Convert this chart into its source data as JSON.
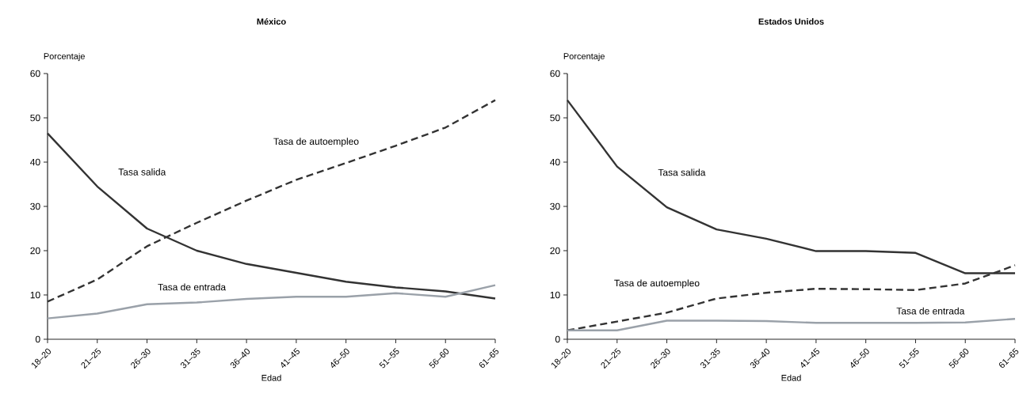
{
  "chart_data": [
    {
      "type": "line",
      "title": "México",
      "ylabel": "Porcentaje",
      "xlabel": "Edad",
      "categories": [
        "18–20",
        "21–25",
        "26–30",
        "31–35",
        "36–40",
        "41–45",
        "46–50",
        "51–55",
        "56–60",
        "61–65"
      ],
      "ylim": [
        0,
        60
      ],
      "yticks": [
        0,
        10,
        20,
        30,
        40,
        50,
        60
      ],
      "series": [
        {
          "name": "Tasa salida",
          "color": "#333333",
          "line_style": "solid",
          "values": [
            46.5,
            34.5,
            25,
            20,
            17,
            15,
            13,
            11.7,
            10.8,
            9.2
          ]
        },
        {
          "name": "Tasa de autoempleo",
          "color": "#333333",
          "line_style": "dashed",
          "values": [
            8.5,
            13.5,
            21,
            26.3,
            31.3,
            36,
            39.8,
            43.7,
            47.8,
            54
          ]
        },
        {
          "name": "Tasa de entrada",
          "color": "#9aa1a9",
          "line_style": "solid",
          "values": [
            4.7,
            5.8,
            7.9,
            8.3,
            9.1,
            9.6,
            9.6,
            10.4,
            9.6,
            12.2
          ]
        }
      ]
    },
    {
      "type": "line",
      "title": "Estados Unidos",
      "ylabel": "Porcentaje",
      "xlabel": "Edad",
      "categories": [
        "18–20",
        "21–25",
        "26–30",
        "31–35",
        "36–40",
        "41–45",
        "46–50",
        "51–55",
        "56–60",
        "61–65"
      ],
      "ylim": [
        0,
        60
      ],
      "yticks": [
        0,
        10,
        20,
        30,
        40,
        50,
        60
      ],
      "series": [
        {
          "name": "Tasa salida",
          "color": "#333333",
          "line_style": "solid",
          "values": [
            54,
            39,
            29.8,
            24.8,
            22.7,
            19.9,
            19.9,
            19.5,
            14.9,
            14.9
          ]
        },
        {
          "name": "Tasa de autoempleo",
          "color": "#333333",
          "line_style": "dashed",
          "values": [
            2,
            4,
            6,
            9.2,
            10.5,
            11.4,
            11.3,
            11.1,
            12.6,
            16.7
          ]
        },
        {
          "name": "Tasa de entrada",
          "color": "#9aa1a9",
          "line_style": "solid",
          "values": [
            2,
            2,
            4.2,
            4.2,
            4.1,
            3.7,
            3.7,
            3.7,
            3.8,
            4.6
          ]
        }
      ]
    }
  ]
}
